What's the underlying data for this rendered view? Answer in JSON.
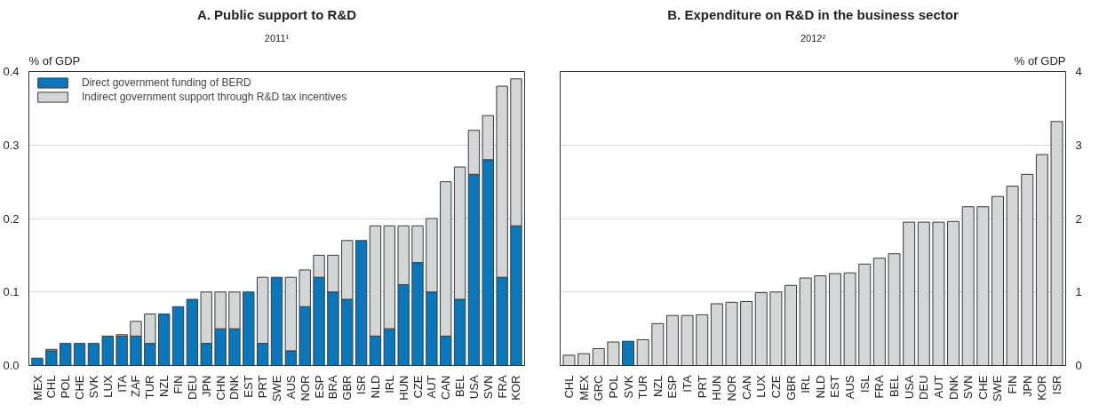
{
  "chart_data": [
    {
      "type": "bar",
      "title": "A. Public support to R&D",
      "subtitle": "2011¹",
      "ylabel": "% of GDP",
      "stacked": true,
      "legend": "top left",
      "grid": "y",
      "categories": [
        "MEX",
        "CHL",
        "POL",
        "CHE",
        "SVK",
        "LUX",
        "ITA",
        "ZAF",
        "TUR",
        "NZL",
        "FIN",
        "DEU",
        "JPN",
        "CHN",
        "DNK",
        "EST",
        "PRT",
        "SWE",
        "AUS",
        "NOR",
        "ESP",
        "BRA",
        "GBR",
        "ISR",
        "NLD",
        "IRL",
        "HUN",
        "CZE",
        "AUT",
        "CAN",
        "BEL",
        "USA",
        "SVN",
        "FRA",
        "KOR"
      ],
      "ylim": [
        0,
        0.4
      ],
      "yticks": [
        {
          "value": 0,
          "label": "0.0"
        },
        0.1,
        0.2,
        0.3,
        0.4
      ],
      "series": [
        {
          "name": "Direct government funding of BERD",
          "color": "#0b77bb",
          "values": [
            0.01,
            0.02,
            0.03,
            0.03,
            0.03,
            0.04,
            0.04,
            0.04,
            0.03,
            0.07,
            0.08,
            0.09,
            0.03,
            0.05,
            0.05,
            0.1,
            0.03,
            0.12,
            0.02,
            0.08,
            0.12,
            0.1,
            0.09,
            0.17,
            0.04,
            0.05,
            0.11,
            0.14,
            0.1,
            0.04,
            0.09,
            0.26,
            0.28,
            0.12,
            0.19
          ]
        },
        {
          "name": "Indirect government support through R&D tax incentives",
          "color": "#d4d5d7",
          "values": [
            0,
            0.002,
            0,
            0,
            0,
            0,
            0.002,
            0.02,
            0.04,
            0,
            0,
            0,
            0.07,
            0.05,
            0.05,
            0,
            0.09,
            0,
            0.1,
            0.05,
            0.03,
            0.05,
            0.08,
            0,
            0.15,
            0.14,
            0.08,
            0.05,
            0.1,
            0.21,
            0.18,
            0.06,
            0.06,
            0.26,
            0.2
          ]
        }
      ]
    },
    {
      "type": "bar",
      "title": "B. Expenditure on R&D in the business sector",
      "subtitle": "2012²",
      "y2label": "% of GDP",
      "grid": "y",
      "categories": [
        "CHL",
        "MEX",
        "GRC",
        "POL",
        "SVK",
        "TUR",
        "NZL",
        "ESP",
        "ITA",
        "PRT",
        "HUN",
        "NOR",
        "CAN",
        "LUX",
        "CZE",
        "GBR",
        "IRL",
        "NLD",
        "EST",
        "AUS",
        "ISL",
        "FRA",
        "BEL",
        "USA",
        "DEU",
        "AUT",
        "DNK",
        "SVN",
        "CHE",
        "SWE",
        "FIN",
        "JPN",
        "KOR",
        "ISR"
      ],
      "y2lim": [
        0,
        4
      ],
      "y2ticks": [
        0,
        1,
        2,
        3,
        4
      ],
      "series": [
        {
          "axis": "y2",
          "color": "#d4d5d7",
          "colors": [
            null,
            null,
            null,
            null,
            "#0b77bb",
            null,
            null,
            null,
            null,
            null,
            null,
            null,
            null,
            null,
            null,
            null,
            null,
            null,
            null,
            null,
            null,
            null,
            null,
            null,
            null,
            null,
            null,
            null,
            null,
            null,
            null,
            null,
            null,
            null
          ],
          "values": [
            0.14,
            0.16,
            0.23,
            0.32,
            0.33,
            0.35,
            0.57,
            0.68,
            0.68,
            0.69,
            0.84,
            0.86,
            0.87,
            0.99,
            1.0,
            1.09,
            1.19,
            1.22,
            1.25,
            1.26,
            1.38,
            1.46,
            1.52,
            1.95,
            1.95,
            1.95,
            1.96,
            2.16,
            2.16,
            2.3,
            2.44,
            2.6,
            2.87,
            3.32
          ]
        }
      ]
    }
  ]
}
